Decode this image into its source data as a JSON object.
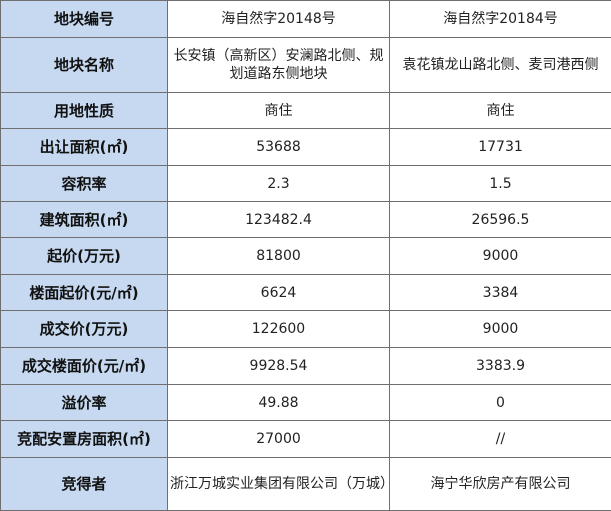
{
  "rows": [
    {
      "label": "地块编号",
      "a": "海自然字20148号",
      "b": "海自然字20184号"
    },
    {
      "label": "地块名称",
      "a": "长安镇（高新区）安澜路北侧、规划道路东侧地块",
      "b": "袁花镇龙山路北侧、麦司港西侧"
    },
    {
      "label": "用地性质",
      "a": "商住",
      "b": "商住"
    },
    {
      "label": "出让面积(㎡)",
      "a": "53688",
      "b": "17731"
    },
    {
      "label": "容积率",
      "a": "2.3",
      "b": "1.5"
    },
    {
      "label": "建筑面积(㎡)",
      "a": "123482.4",
      "b": "26596.5"
    },
    {
      "label": "起价(万元)",
      "a": "81800",
      "b": "9000"
    },
    {
      "label": "楼面起价(元/㎡)",
      "a": "6624",
      "b": "3384"
    },
    {
      "label": "成交价(万元)",
      "a": "122600",
      "b": "9000"
    },
    {
      "label": "成交楼面价(元/㎡)",
      "a": "9928.54",
      "b": "3383.9"
    },
    {
      "label": "溢价率",
      "a": "49.88",
      "b": "0"
    },
    {
      "label": "竞配安置房面积(㎡)",
      "a": "27000",
      "b": "//"
    },
    {
      "label": "竞得者",
      "a": "浙江万城实业集团有限公司（万城）",
      "b": "海宁华欣房产有限公司"
    }
  ],
  "colors": {
    "header_bg": "#c6d9f0",
    "border": "#6f6f6f"
  }
}
